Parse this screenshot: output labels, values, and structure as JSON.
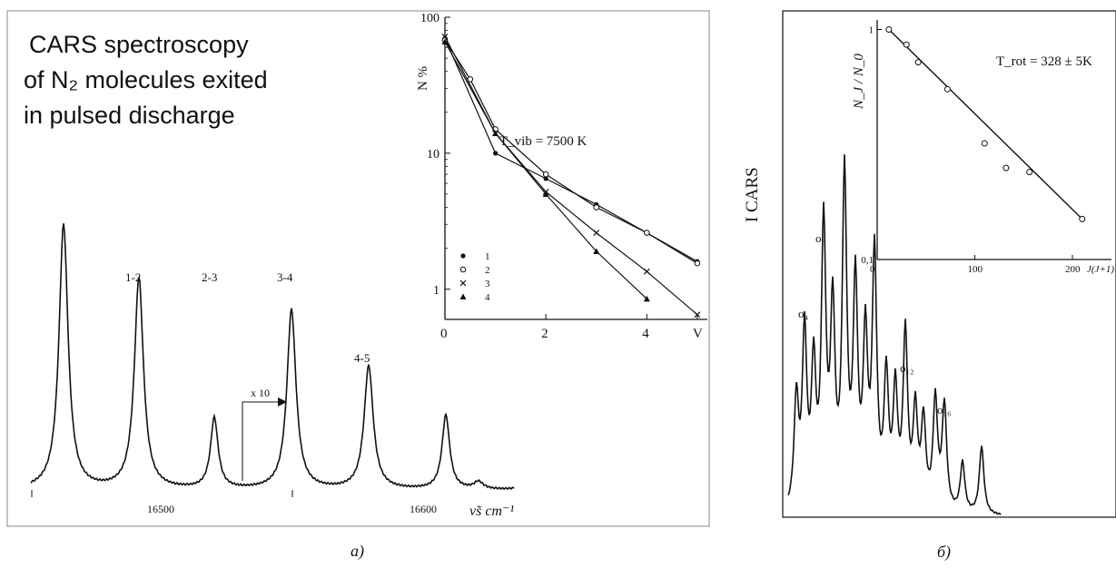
{
  "panel_a": {
    "title_lines": [
      "CARS spectroscopy",
      "of N₂ molecules exited",
      "in pulsed discharge"
    ],
    "peak_labels": [
      "1-2",
      "2-3",
      "3-4",
      "4-5",
      "x 10"
    ],
    "x_ticks": [
      "16500",
      "16600"
    ],
    "x_axis_label": "ν̃s cm⁻¹",
    "caption": "a)"
  },
  "panel_b": {
    "y_axis_label": "I  CARS",
    "peak_labels": [
      "o₄",
      "o₆",
      "o₁₂",
      "o₁₆"
    ],
    "caption": "б)"
  },
  "chart_data": [
    {
      "type": "line",
      "name": "inset-a",
      "ylabel": "N %",
      "xlabel": "V",
      "annotation": "T_vib = 7500 K",
      "y_scale": "log",
      "xlim": [
        0,
        5.2
      ],
      "ylim": [
        0.6,
        100
      ],
      "x_ticks": [
        "0",
        "2",
        "4",
        "V"
      ],
      "y_ticks": [
        "1",
        "10",
        "100"
      ],
      "legend": [
        "1",
        "2",
        "3",
        "4"
      ],
      "legend_position": "bottom-left",
      "series": [
        {
          "name": "1",
          "marker": "dot",
          "x": [
            0,
            1,
            2,
            3,
            4,
            5
          ],
          "y": [
            70,
            10,
            6.5,
            4.2,
            2.6,
            1.6
          ]
        },
        {
          "name": "2",
          "marker": "circle",
          "x": [
            0,
            0.5,
            1,
            2,
            3,
            4,
            5
          ],
          "y": [
            68,
            35,
            15,
            7,
            4,
            2.6,
            1.55
          ]
        },
        {
          "name": "3",
          "marker": "cross",
          "x": [
            0,
            1,
            2,
            3,
            4,
            5
          ],
          "y": [
            72,
            14,
            5.2,
            2.6,
            1.35,
            0.65
          ]
        },
        {
          "name": "4",
          "marker": "triangle",
          "x": [
            0,
            1,
            2,
            3,
            4
          ],
          "y": [
            66,
            14,
            5,
            1.9,
            0.85
          ]
        }
      ]
    },
    {
      "type": "scatter",
      "name": "inset-b",
      "ylabel": "N_J / N_0",
      "xlabel": "J(J+1)",
      "annotation": "T_rot = 328 ± 5K",
      "y_scale": "log",
      "xlim": [
        0,
        240
      ],
      "ylim": [
        0.1,
        1.1
      ],
      "x_ticks": [
        "0",
        "100",
        "200"
      ],
      "y_ticks": [
        "0,1",
        "1"
      ],
      "points": {
        "x": [
          12,
          30,
          42,
          72,
          110,
          132,
          156,
          210
        ],
        "y": [
          1.0,
          0.86,
          0.72,
          0.55,
          0.32,
          0.25,
          0.24,
          0.15
        ]
      }
    }
  ]
}
